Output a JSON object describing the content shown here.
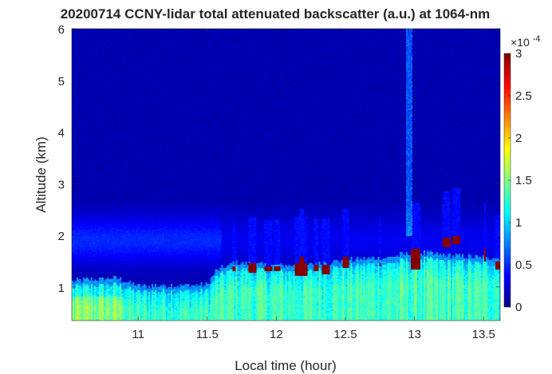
{
  "chart_data": {
    "type": "heatmap",
    "title": "20200714 CCNY-lidar total attenuated backscatter (a.u.) at 1064-nm",
    "xlabel": "Local time (hour)",
    "ylabel": "Altitude (km)",
    "xlim": [
      10.52,
      13.62
    ],
    "ylim": [
      0.35,
      6.0
    ],
    "xticks": [
      "11",
      "11.5",
      "12",
      "12.5",
      "13",
      "13.5"
    ],
    "xtick_values": [
      11,
      11.5,
      12,
      12.5,
      13,
      13.5
    ],
    "yticks": [
      "1",
      "2",
      "3",
      "4",
      "5",
      "6"
    ],
    "ytick_values": [
      1,
      2,
      3,
      4,
      5,
      6
    ],
    "colorbar": {
      "colormap": "jet",
      "limits": [
        0,
        3
      ],
      "ticks": [
        "0",
        "0.5",
        "1",
        "1.5",
        "2",
        "2.5",
        "3"
      ],
      "tick_values": [
        0,
        0.5,
        1,
        1.5,
        2,
        2.5,
        3
      ],
      "exponent_label": "×10",
      "exponent": "-4"
    },
    "features": {
      "boundary_layer_top_km": [
        [
          10.55,
          1.0
        ],
        [
          10.85,
          1.05
        ],
        [
          11.0,
          0.9
        ],
        [
          11.5,
          0.92
        ],
        [
          11.57,
          1.2
        ],
        [
          11.7,
          1.35
        ],
        [
          12.0,
          1.3
        ],
        [
          12.2,
          1.3
        ],
        [
          12.5,
          1.4
        ],
        [
          12.8,
          1.45
        ],
        [
          13.0,
          1.55
        ],
        [
          13.2,
          1.5
        ],
        [
          13.5,
          1.45
        ],
        [
          13.6,
          1.45
        ]
      ],
      "cloud_events": [
        {
          "t0": 11.68,
          "t1": 11.71,
          "z0": 1.3,
          "z1": 1.4
        },
        {
          "t0": 11.8,
          "t1": 11.86,
          "z0": 1.28,
          "z1": 1.45
        },
        {
          "t0": 11.92,
          "t1": 11.97,
          "z0": 1.3,
          "z1": 1.4
        },
        {
          "t0": 11.98,
          "t1": 12.03,
          "z0": 1.3,
          "z1": 1.4
        },
        {
          "t0": 12.13,
          "t1": 12.22,
          "z0": 1.2,
          "z1": 1.45
        },
        {
          "t0": 12.17,
          "t1": 12.2,
          "z0": 1.45,
          "z1": 1.6
        },
        {
          "t0": 12.27,
          "t1": 12.31,
          "z0": 1.3,
          "z1": 1.42
        },
        {
          "t0": 12.33,
          "t1": 12.39,
          "z0": 1.25,
          "z1": 1.42
        },
        {
          "t0": 12.48,
          "t1": 12.52,
          "z0": 1.38,
          "z1": 1.6
        },
        {
          "t0": 12.74,
          "t1": 12.76,
          "z0": 1.4,
          "z1": 1.45
        },
        {
          "t0": 12.97,
          "t1": 13.04,
          "z0": 1.35,
          "z1": 1.75
        },
        {
          "t0": 13.2,
          "t1": 13.26,
          "z0": 1.78,
          "z1": 1.95
        },
        {
          "t0": 13.28,
          "t1": 13.33,
          "z0": 1.82,
          "z1": 2.0
        },
        {
          "t0": 13.5,
          "t1": 13.52,
          "z0": 1.5,
          "z1": 1.75
        },
        {
          "t0": 13.58,
          "t1": 13.62,
          "z0": 1.35,
          "z1": 1.5
        }
      ],
      "plume_column": {
        "t": 12.96,
        "z0": 2.0,
        "z1": 6.0
      },
      "background_value": 0.1
    }
  }
}
